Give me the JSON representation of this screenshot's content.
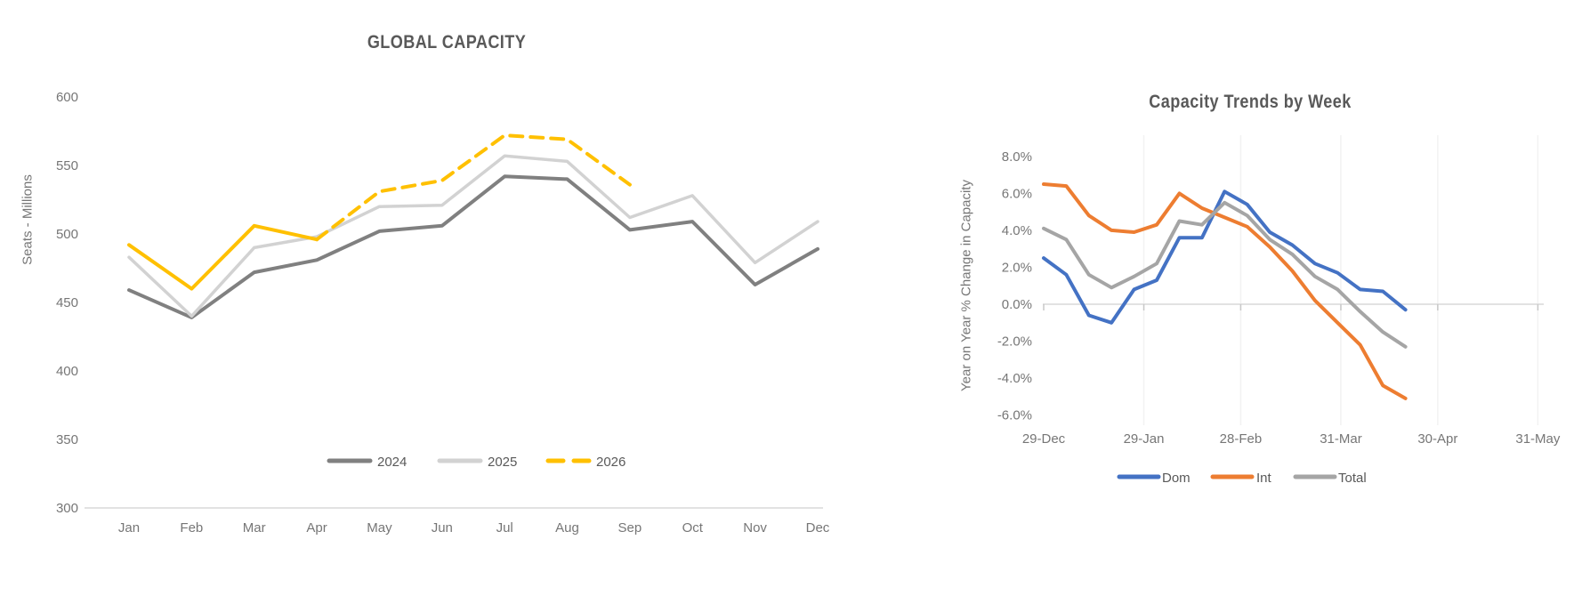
{
  "chart_data": [
    {
      "type": "line",
      "title": "GLOBAL CAPACITY",
      "ylabel": "Seats - Millions",
      "xlabel": "",
      "categories": [
        "Jan",
        "Feb",
        "Mar",
        "Apr",
        "May",
        "Jun",
        "Jul",
        "Aug",
        "Sep",
        "Oct",
        "Nov",
        "Dec"
      ],
      "ylim": [
        300,
        600
      ],
      "ytick_values": [
        600,
        550,
        500,
        450,
        400,
        350,
        300
      ],
      "ytick_labels": [
        "600",
        "550",
        "500",
        "450",
        "400",
        "350",
        "300"
      ],
      "grid": false,
      "legend_position": "bottom",
      "series": [
        {
          "name": "2024",
          "color": "#808080",
          "dash": "solid",
          "values": [
            459,
            439,
            472,
            481,
            502,
            506,
            542,
            540,
            503,
            509,
            463,
            489
          ]
        },
        {
          "name": "2025",
          "color": "#D2D2D2",
          "dash": "solid",
          "values": [
            483,
            440,
            490,
            498,
            520,
            521,
            557,
            553,
            512,
            528,
            479,
            509
          ]
        },
        {
          "name": "2026",
          "color": "#FFC000",
          "dash": "dashed",
          "solid_until_index": 3,
          "values": [
            492,
            460,
            506,
            496,
            531,
            539,
            572,
            569,
            536
          ]
        }
      ]
    },
    {
      "type": "line",
      "title": "Capacity Trends by Week",
      "ylabel": "Year on Year % Change in Capacity",
      "xlabel": "",
      "ylim": [
        -6,
        8
      ],
      "ytick_values": [
        8,
        6,
        4,
        2,
        0,
        -2,
        -4,
        -6
      ],
      "ytick_labels": [
        "8.0%",
        "6.0%",
        "4.0%",
        "2.0%",
        "0.0%",
        "-2.0%",
        "-4.0%",
        "-6.0%"
      ],
      "xtick_labels": [
        "29-Dec",
        "29-Jan",
        "28-Feb",
        "31-Mar",
        "30-Apr",
        "31-May"
      ],
      "xtick_days": [
        0,
        31,
        61,
        92,
        122,
        153
      ],
      "x_days": [
        0,
        7,
        14,
        21,
        28,
        35,
        42,
        49,
        56,
        63,
        70,
        77,
        84,
        91,
        98,
        105,
        112
      ],
      "grid": "faint vertical gridline at each month tick",
      "legend_position": "bottom",
      "series": [
        {
          "name": "Dom",
          "color": "#4472C4",
          "values": [
            2.5,
            1.6,
            -0.6,
            -1.0,
            0.8,
            1.3,
            3.6,
            3.6,
            6.1,
            5.4,
            3.9,
            3.2,
            2.2,
            1.7,
            0.8,
            0.7,
            -0.3
          ]
        },
        {
          "name": "Int",
          "color": "#ED7D31",
          "values": [
            6.5,
            6.4,
            4.8,
            4.0,
            3.9,
            4.3,
            6.0,
            5.2,
            4.7,
            4.2,
            3.1,
            1.8,
            0.2,
            -1.0,
            -2.2,
            -4.4,
            -5.1
          ]
        },
        {
          "name": "Total",
          "color": "#A5A5A5",
          "values": [
            4.1,
            3.5,
            1.6,
            0.9,
            1.5,
            2.2,
            4.5,
            4.3,
            5.5,
            4.8,
            3.5,
            2.7,
            1.5,
            0.8,
            -0.4,
            -1.5,
            -2.3
          ]
        }
      ]
    }
  ]
}
